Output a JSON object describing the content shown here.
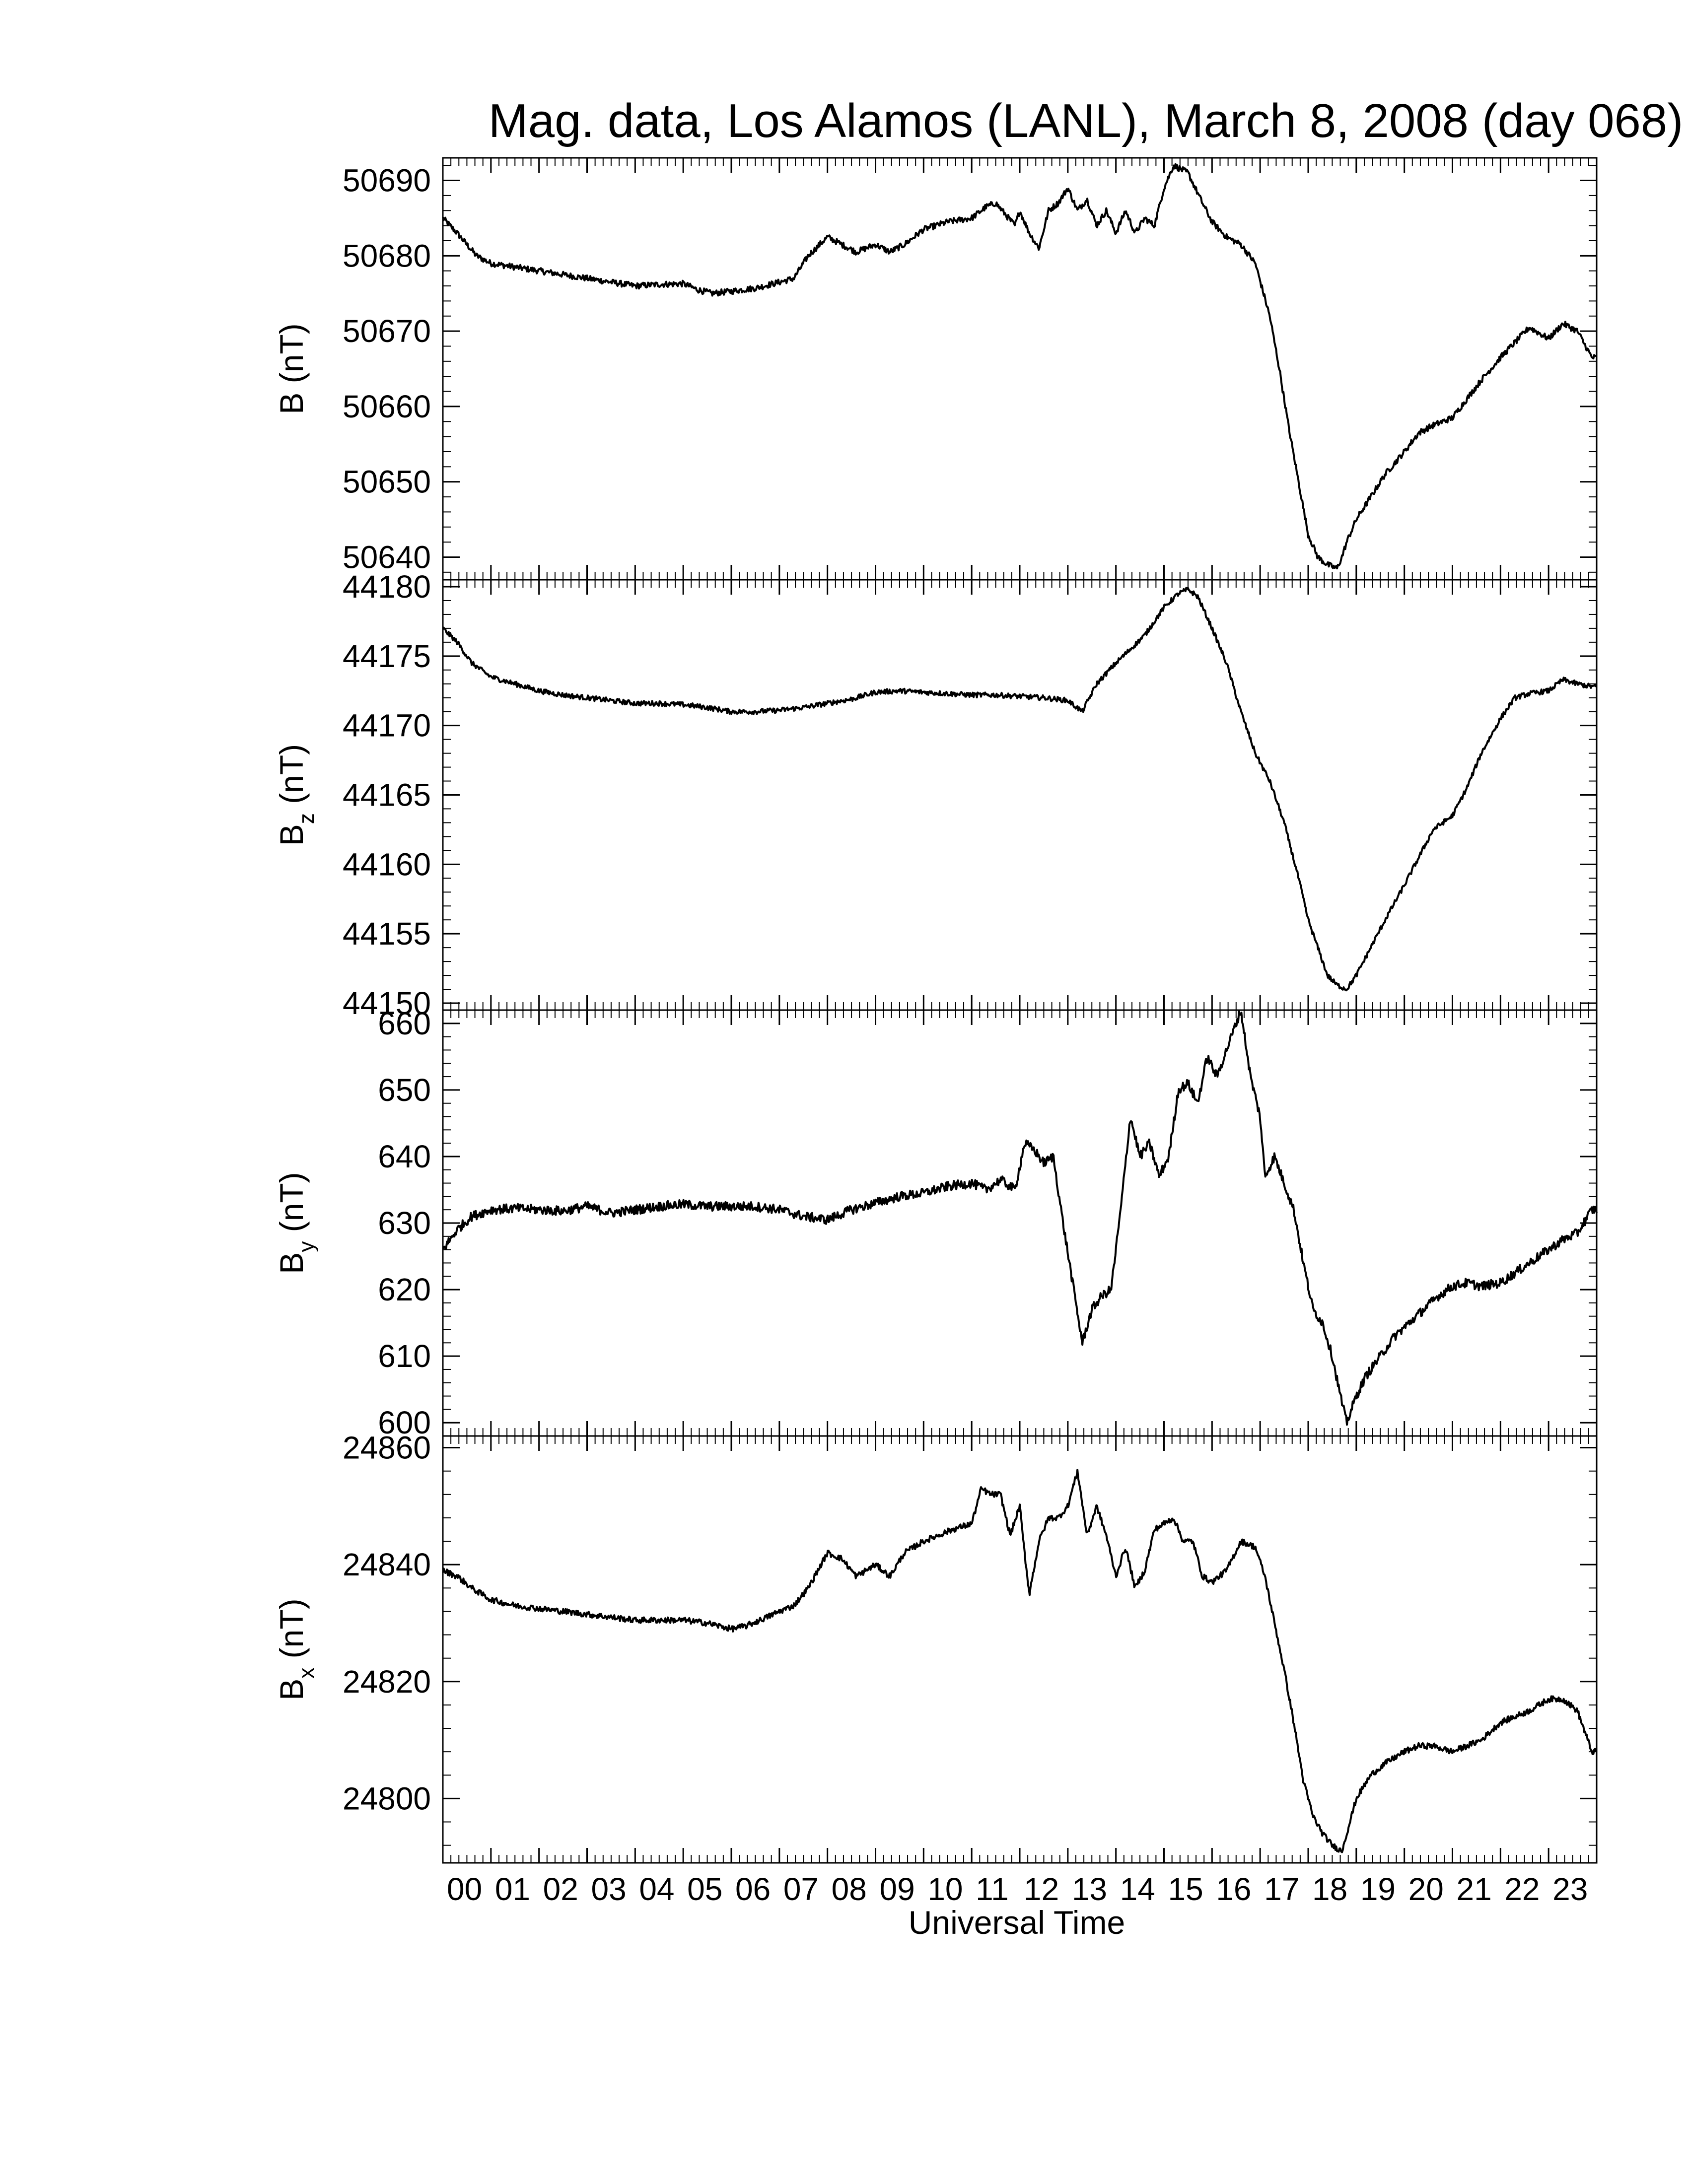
{
  "title": "Mag. data, Los Alamos (LANL), March 8, 2008 (day 068)",
  "line_color": "#000000",
  "chart_data": {
    "type": "line",
    "title": "Mag. data, Los Alamos (LANL), March 8, 2008 (day 068)",
    "xlabel": "Universal Time",
    "x_ticks": [
      "00",
      "01",
      "02",
      "03",
      "04",
      "05",
      "06",
      "07",
      "08",
      "09",
      "10",
      "11",
      "12",
      "13",
      "14",
      "15",
      "16",
      "17",
      "18",
      "19",
      "20",
      "21",
      "22",
      "23"
    ],
    "xlim": [
      0,
      24
    ],
    "x_unit": "hours UT",
    "panels": [
      {
        "name": "B",
        "ylabel_main": "B",
        "ylabel_sub": "",
        "ylabel_unit": "(nT)",
        "ylim": [
          50637,
          50693
        ],
        "yticks": [
          50640,
          50650,
          50660,
          50670,
          50680,
          50690
        ],
        "noise": 0.4,
        "x": [
          0,
          0.3,
          0.7,
          1,
          1.5,
          2,
          2.5,
          3,
          3.5,
          4,
          4.5,
          5,
          5.3,
          5.6,
          6,
          6.5,
          7,
          7.3,
          7.6,
          8,
          8.3,
          8.6,
          9,
          9.3,
          9.6,
          10,
          10.5,
          11,
          11.3,
          11.5,
          11.7,
          11.9,
          12,
          12.2,
          12.4,
          12.6,
          12.8,
          13,
          13.2,
          13.4,
          13.6,
          13.8,
          14,
          14.2,
          14.4,
          14.6,
          14.8,
          15,
          15.2,
          15.5,
          15.8,
          16,
          16.3,
          16.6,
          16.9,
          17.2,
          17.4,
          17.6,
          17.8,
          18,
          18.2,
          18.4,
          18.6,
          18.7,
          18.8,
          19,
          19.3,
          19.6,
          20,
          20.3,
          20.6,
          21,
          21.3,
          21.6,
          22,
          22.3,
          22.6,
          23,
          23.3,
          23.6,
          23.9
        ],
        "y": [
          50685,
          50683,
          50680,
          50679,
          50678.5,
          50678,
          50677.5,
          50677,
          50676.5,
          50676,
          50676.2,
          50676.3,
          50675.5,
          50675,
          50675.3,
          50675.7,
          50676.5,
          50677,
          50680,
          50682.5,
          50681.5,
          50680.5,
          50681.5,
          50680.5,
          50681.5,
          50683.5,
          50684.5,
          50685,
          50686.5,
          50687,
          50685.5,
          50684,
          50686,
          50683,
          50681,
          50686,
          50687,
          50689,
          50686,
          50687.5,
          50684,
          50686,
          50683,
          50686,
          50683,
          50685,
          50684,
          50689,
          50692,
          50691,
          50687,
          50684.5,
          50682.5,
          50681.5,
          50679,
          50672,
          50665,
          50657,
          50650,
          50643,
          50640,
          50639,
          50638.5,
          50640,
          50642,
          50645,
          50648,
          50651,
          50654,
          50656.5,
          50657.5,
          50658.5,
          50661,
          50663.5,
          50666.5,
          50668.5,
          50670.5,
          50669,
          50671,
          50670,
          50666.5
        ]
      },
      {
        "name": "Bz",
        "ylabel_main": "B",
        "ylabel_sub": "z",
        "ylabel_unit": "(nT)",
        "ylim": [
          44149.5,
          44180.5
        ],
        "yticks": [
          44150,
          44155,
          44160,
          44165,
          44170,
          44175,
          44180
        ],
        "noise": 0.18,
        "x": [
          0,
          0.3,
          0.6,
          1,
          1.5,
          2,
          2.5,
          3,
          3.5,
          4,
          4.5,
          5,
          5.5,
          6,
          6.5,
          7,
          7.5,
          8,
          8.5,
          9,
          9.5,
          10,
          10.5,
          11,
          11.5,
          12,
          12.5,
          13,
          13.3,
          13.6,
          14,
          14.3,
          14.6,
          15,
          15.3,
          15.5,
          15.7,
          16,
          16.3,
          16.6,
          16.9,
          17.2,
          17.5,
          17.8,
          18,
          18.2,
          18.4,
          18.6,
          18.8,
          19,
          19.3,
          19.6,
          20,
          20.3,
          20.6,
          21,
          21.3,
          21.6,
          22,
          22.3,
          22.6,
          23,
          23.3,
          23.6,
          23.9
        ],
        "y": [
          44177,
          44176,
          44174.5,
          44173.5,
          44173,
          44172.5,
          44172.2,
          44172,
          44171.8,
          44171.6,
          44171.6,
          44171.5,
          44171.3,
          44171,
          44171,
          44171.1,
          44171.3,
          44171.6,
          44171.9,
          44172.4,
          44172.5,
          44172.4,
          44172.3,
          44172.2,
          44172.2,
          44172.1,
          44172,
          44171.8,
          44171,
          44173,
          44174.5,
          44175.5,
          44176.5,
          44178.5,
          44179.5,
          44179.8,
          44179.3,
          44177,
          44174.5,
          44171,
          44168,
          44166,
          44163,
          44159,
          44156,
          44154,
          44152,
          44151.3,
          44151,
          44152,
          44154,
          44156,
          44158.5,
          44160.5,
          44162.5,
          44163.5,
          44165.5,
          44168,
          44170.5,
          44172,
          44172.3,
          44172.5,
          44173.3,
          44173,
          44172.8
        ]
      },
      {
        "name": "By",
        "ylabel_main": "B",
        "ylabel_sub": "y",
        "ylabel_unit": "(nT)",
        "ylim": [
          598,
          662
        ],
        "yticks": [
          600,
          610,
          620,
          630,
          640,
          650,
          660
        ],
        "noise": 0.7,
        "x": [
          0,
          0.3,
          0.6,
          1,
          1.5,
          2,
          2.5,
          3,
          3.5,
          4,
          4.5,
          5,
          5.5,
          6,
          6.5,
          7,
          7.5,
          8,
          8.5,
          9,
          9.5,
          10,
          10.5,
          11,
          11.3,
          11.6,
          11.9,
          12.1,
          12.3,
          12.5,
          12.7,
          12.9,
          13.1,
          13.3,
          13.5,
          13.7,
          13.9,
          14.1,
          14.3,
          14.5,
          14.7,
          14.9,
          15.1,
          15.3,
          15.5,
          15.7,
          15.9,
          16.1,
          16.3,
          16.5,
          16.6,
          16.8,
          17,
          17.1,
          17.3,
          17.5,
          17.7,
          17.9,
          18.1,
          18.3,
          18.5,
          18.7,
          18.8,
          19,
          19.2,
          19.5,
          19.8,
          20.1,
          20.4,
          20.7,
          21,
          21.3,
          21.6,
          22,
          22.3,
          22.6,
          23,
          23.3,
          23.6,
          23.9
        ],
        "y": [
          626,
          629,
          631,
          632,
          632.2,
          632,
          631.8,
          632.5,
          631.5,
          632,
          632.5,
          632.8,
          632.5,
          632.5,
          632.5,
          632,
          631,
          630.5,
          632,
          633,
          634,
          634.5,
          635.5,
          636,
          635,
          636.5,
          635,
          642,
          641,
          639,
          640,
          630,
          621,
          612,
          617,
          619,
          620,
          632,
          646,
          640,
          642,
          637,
          640,
          650,
          651,
          648,
          655,
          652,
          656,
          660,
          662,
          652,
          646,
          637,
          640,
          636,
          632,
          624,
          617,
          615,
          610,
          603,
          600,
          604,
          607,
          610,
          613,
          615,
          617,
          619,
          620.5,
          621,
          620.5,
          621,
          622.5,
          624,
          626,
          627.5,
          628.5,
          632
        ]
      },
      {
        "name": "Bx",
        "ylabel_main": "B",
        "ylabel_sub": "x",
        "ylabel_unit": "(nT)",
        "ylim": [
          24789,
          24862
        ],
        "yticks": [
          24800,
          24820,
          24840,
          24860
        ],
        "noise": 0.5,
        "x": [
          0,
          0.3,
          0.6,
          1,
          1.5,
          2,
          2.5,
          3,
          3.5,
          4,
          4.5,
          5,
          5.5,
          6,
          6.3,
          6.6,
          7,
          7.3,
          7.6,
          8,
          8.3,
          8.6,
          9,
          9.3,
          9.6,
          10,
          10.3,
          10.6,
          11,
          11.2,
          11.4,
          11.6,
          11.8,
          12,
          12.1,
          12.2,
          12.4,
          12.6,
          12.8,
          13,
          13.2,
          13.4,
          13.6,
          13.8,
          14,
          14.2,
          14.4,
          14.6,
          14.8,
          15,
          15.2,
          15.4,
          15.6,
          15.8,
          16,
          16.3,
          16.6,
          16.9,
          17.1,
          17.3,
          17.5,
          17.7,
          17.9,
          18.1,
          18.3,
          18.5,
          18.7,
          18.8,
          19,
          19.3,
          19.6,
          20,
          20.3,
          20.6,
          21,
          21.3,
          21.6,
          22,
          22.3,
          22.6,
          23,
          23.3,
          23.6,
          23.9
        ],
        "y": [
          24839,
          24838,
          24836,
          24834,
          24833,
          24832.5,
          24832,
          24831.5,
          24831,
          24830.5,
          24830.5,
          24830.5,
          24830,
          24829,
          24829.5,
          24830.5,
          24832,
          24833,
          24836,
          24842,
          24841,
          24838,
          24840,
          24838,
          24842,
          24844,
          24845,
          24846,
          24847,
          24853,
          24852,
          24852,
          24845,
          24850,
          24842,
          24835,
          24844,
          24848,
          24848,
          24850,
          24856,
          24845,
          24850,
          24845,
          24838,
          24843,
          24836,
          24839,
          24846,
          24847,
          24848,
          24844,
          24844,
          24838,
          24837,
          24839,
          24844,
          24843,
          24838,
          24830,
          24822,
          24813,
          24803,
          24797,
          24794,
          24792,
          24791,
          24794,
          24800,
          24804,
          24806,
          24808,
          24809,
          24809,
          24808,
          24809,
          24810,
          24813,
          24814,
          24815,
          24817,
          24817,
          24815,
          24808
        ]
      }
    ]
  }
}
